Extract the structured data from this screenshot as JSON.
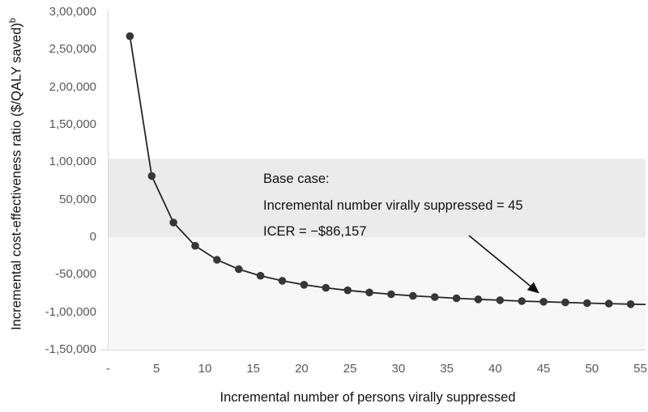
{
  "annotation": {
    "line1": "Base case:",
    "line2": "Incremental number virally suppressed = 45",
    "line3": "ICER = −$86,157"
  },
  "colors": {
    "upper_band": "#ebebeb",
    "lower_band": "#f7f7f7",
    "axis_line": "#d9d9d9",
    "tick_text": "#595959",
    "series_line": "#262626",
    "marker_fill": "#363636",
    "annotation_text": "#111111"
  },
  "chart_data": {
    "type": "line",
    "title": "",
    "xlabel": "Incremental number of persons virally suppressed",
    "ylabel": "Incremental cost-effectiveness ratio ($/QALY saved)",
    "ylabel_superscript": "b",
    "xlim": [
      0,
      55.5
    ],
    "ylim": [
      -150000,
      300000
    ],
    "grid": false,
    "legend": false,
    "xticks": [
      {
        "v": 0,
        "label": "-"
      },
      {
        "v": 5,
        "label": "5"
      },
      {
        "v": 10,
        "label": "10"
      },
      {
        "v": 15,
        "label": "15"
      },
      {
        "v": 20,
        "label": "20"
      },
      {
        "v": 25,
        "label": "25"
      },
      {
        "v": 30,
        "label": "30"
      },
      {
        "v": 35,
        "label": "35"
      },
      {
        "v": 40,
        "label": "40"
      },
      {
        "v": 45,
        "label": "45"
      },
      {
        "v": 50,
        "label": "50"
      },
      {
        "v": 55,
        "label": "55"
      }
    ],
    "yticks": [
      {
        "v": 300000,
        "label": "3,00,000"
      },
      {
        "v": 250000,
        "label": "2,50,000"
      },
      {
        "v": 200000,
        "label": "2,00,000"
      },
      {
        "v": 150000,
        "label": "1,50,000"
      },
      {
        "v": 100000,
        "label": "1,00,000"
      },
      {
        "v": 50000,
        "label": "50,000"
      },
      {
        "v": 0,
        "label": "0"
      },
      {
        "v": -50000,
        "label": "-50,000"
      },
      {
        "v": -100000,
        "label": "-1,00,000"
      },
      {
        "v": -150000,
        "label": "-1,50,000"
      }
    ],
    "bands": [
      {
        "name": "upper-shaded-region",
        "from": 0,
        "to": 105000,
        "color": "#ebebeb"
      },
      {
        "name": "lower-shaded-region",
        "from": -150000,
        "to": 0,
        "color": "#f7f7f7"
      }
    ],
    "series": [
      {
        "name": "ICER vs incremental number virally suppressed",
        "points": [
          [
            2.25,
            268000
          ],
          [
            4.5,
            81600
          ],
          [
            6.75,
            19500
          ],
          [
            9,
            -11600
          ],
          [
            11.25,
            -30200
          ],
          [
            13.5,
            -42700
          ],
          [
            15.75,
            -51500
          ],
          [
            18,
            -58200
          ],
          [
            20.25,
            -63400
          ],
          [
            22.5,
            -67500
          ],
          [
            24.75,
            -70900
          ],
          [
            27,
            -73700
          ],
          [
            29.25,
            -76100
          ],
          [
            31.5,
            -78200
          ],
          [
            33.75,
            -79900
          ],
          [
            36,
            -81500
          ],
          [
            38.25,
            -82900
          ],
          [
            40.5,
            -84100
          ],
          [
            42.75,
            -85200
          ],
          [
            45,
            -86157
          ],
          [
            47.25,
            -87000
          ],
          [
            49.5,
            -87900
          ],
          [
            51.75,
            -88600
          ],
          [
            54,
            -89300
          ],
          [
            56.25,
            -89900
          ]
        ]
      }
    ],
    "base_case": {
      "x": 45,
      "icer": -86157,
      "icer_label": "−$86,157"
    }
  }
}
